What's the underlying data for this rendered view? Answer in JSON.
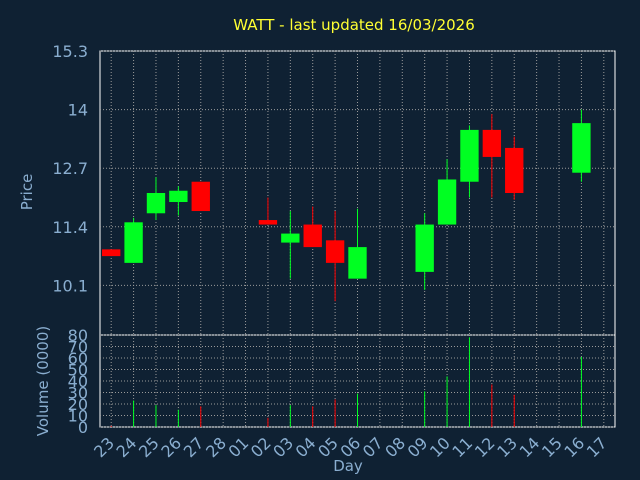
{
  "colors": {
    "background": "#0f2133",
    "plot_background": "#ffffff",
    "title": "#ffff33",
    "axis_text": "#8aaed0",
    "grid": "#9a9a9a",
    "up": "#00ff22",
    "down": "#ff0000",
    "wick": "#555555"
  },
  "chart_data": [
    {
      "type": "candlestick",
      "title": "WATT - last updated 16/03/2026",
      "ylabel": "Price",
      "ylim": [
        9.0,
        15.3
      ],
      "yticks": [
        "15.3",
        "14",
        "12.7",
        "11.4",
        "10.1"
      ],
      "ytick_values": [
        15.3,
        14.0,
        12.7,
        11.4,
        10.1
      ],
      "grid": true,
      "x_labels": [
        "23",
        "24",
        "25",
        "26",
        "27",
        "28",
        "01",
        "02",
        "03",
        "04",
        "05",
        "06",
        "07",
        "08",
        "09",
        "10",
        "11",
        "12",
        "13",
        "14",
        "15",
        "16",
        "17"
      ],
      "candles": [
        {
          "day": "23",
          "open": 10.9,
          "close": 10.75,
          "high": 10.9,
          "low": 10.75
        },
        {
          "day": "24",
          "open": 10.6,
          "close": 11.5,
          "high": 11.6,
          "low": 10.6
        },
        {
          "day": "25",
          "open": 11.7,
          "close": 12.15,
          "high": 12.5,
          "low": 11.55
        },
        {
          "day": "26",
          "open": 11.95,
          "close": 12.2,
          "high": 12.3,
          "low": 11.65
        },
        {
          "day": "27",
          "open": 12.4,
          "close": 11.75,
          "high": 12.4,
          "low": 11.75
        },
        {
          "day": "02",
          "open": 11.55,
          "close": 11.45,
          "high": 12.05,
          "low": 11.45
        },
        {
          "day": "03",
          "open": 11.05,
          "close": 11.25,
          "high": 11.75,
          "low": 10.25
        },
        {
          "day": "04",
          "open": 11.45,
          "close": 10.95,
          "high": 11.85,
          "low": 10.95
        },
        {
          "day": "05",
          "open": 11.1,
          "close": 10.6,
          "high": 11.75,
          "low": 9.75
        },
        {
          "day": "06",
          "open": 10.25,
          "close": 10.95,
          "high": 11.8,
          "low": 10.25
        },
        {
          "day": "09",
          "open": 10.4,
          "close": 11.45,
          "high": 11.7,
          "low": 10.0
        },
        {
          "day": "10",
          "open": 11.45,
          "close": 12.45,
          "high": 12.9,
          "low": 11.45
        },
        {
          "day": "11",
          "open": 12.4,
          "close": 13.55,
          "high": 13.65,
          "low": 12.05
        },
        {
          "day": "12",
          "open": 13.55,
          "close": 12.95,
          "high": 13.9,
          "low": 12.05
        },
        {
          "day": "13",
          "open": 13.15,
          "close": 12.15,
          "high": 13.4,
          "low": 12.0
        },
        {
          "day": "16",
          "open": 12.6,
          "close": 13.7,
          "high": 14.0,
          "low": 12.4
        }
      ]
    },
    {
      "type": "bar",
      "ylabel": "Volume (0000)",
      "xlabel": "Day",
      "ylim": [
        0,
        80
      ],
      "yticks": [
        "80",
        "70",
        "60",
        "50",
        "40",
        "30",
        "20",
        "10",
        "0"
      ],
      "ytick_values": [
        80,
        70,
        60,
        50,
        40,
        30,
        20,
        10,
        0
      ],
      "categories": [
        "23",
        "24",
        "25",
        "26",
        "27",
        "02",
        "03",
        "04",
        "05",
        "06",
        "09",
        "10",
        "11",
        "12",
        "13",
        "16"
      ],
      "values": [
        1,
        23,
        19,
        15,
        18,
        8,
        19,
        18,
        24,
        29,
        31,
        44,
        78,
        37,
        28,
        61
      ],
      "direction": [
        "down",
        "up",
        "up",
        "up",
        "down",
        "down",
        "up",
        "down",
        "down",
        "up",
        "up",
        "up",
        "up",
        "down",
        "down",
        "up"
      ]
    }
  ]
}
